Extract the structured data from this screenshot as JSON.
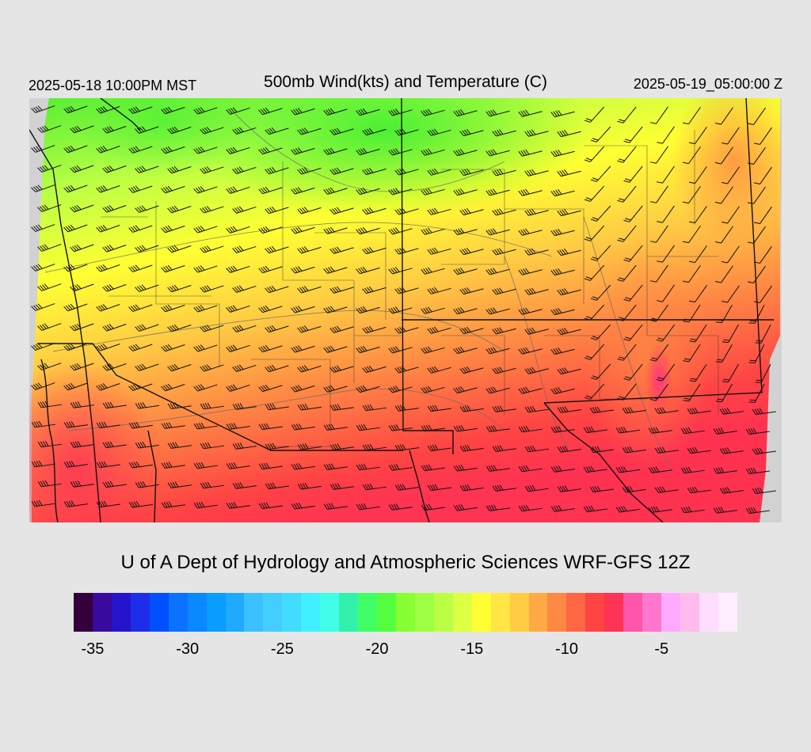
{
  "header": {
    "valid_local": "2025-05-18 10:00PM MST",
    "title": "500mb Wind(kts) and Temperature (C)",
    "valid_utc": "2025-05-19_05:00:00 Z"
  },
  "footer": {
    "credit": "U of A Dept of Hydrology and Atmospheric Sciences WRF-GFS 12Z"
  },
  "map": {
    "field": "500mb temperature",
    "overlays": [
      "wind-barbs",
      "height-contours",
      "state-borders",
      "county-borders",
      "coastline"
    ],
    "wind_direction_prevailing": "west-southwest",
    "colors": {
      "north_cold": "#55ee33",
      "mid": "#ffff33",
      "south_warm": "#ff3344",
      "hot_spot": "#ff4499",
      "outside": "#d2d2d2"
    }
  },
  "colorbar": {
    "colors": [
      "#33003b",
      "#3a0a9e",
      "#2614cc",
      "#1e2ee8",
      "#0050ff",
      "#0a72ff",
      "#0a88ff",
      "#0a9cff",
      "#20aaff",
      "#3dc0ff",
      "#44ceff",
      "#41dcff",
      "#40f0ff",
      "#40ffe6",
      "#33f0aa",
      "#40ff66",
      "#55ff40",
      "#88ff33",
      "#9fff44",
      "#bbff44",
      "#ddff44",
      "#ffff33",
      "#ffe644",
      "#ffcc44",
      "#ffaa44",
      "#ff8844",
      "#ff6644",
      "#ff4444",
      "#ff3355",
      "#ff55aa",
      "#ff77cc",
      "#ffaaff",
      "#ffbbee",
      "#ffddff",
      "#ffeeff"
    ],
    "labels": [
      "-35",
      "-30",
      "-25",
      "-20",
      "-15",
      "-10",
      "-5"
    ]
  }
}
